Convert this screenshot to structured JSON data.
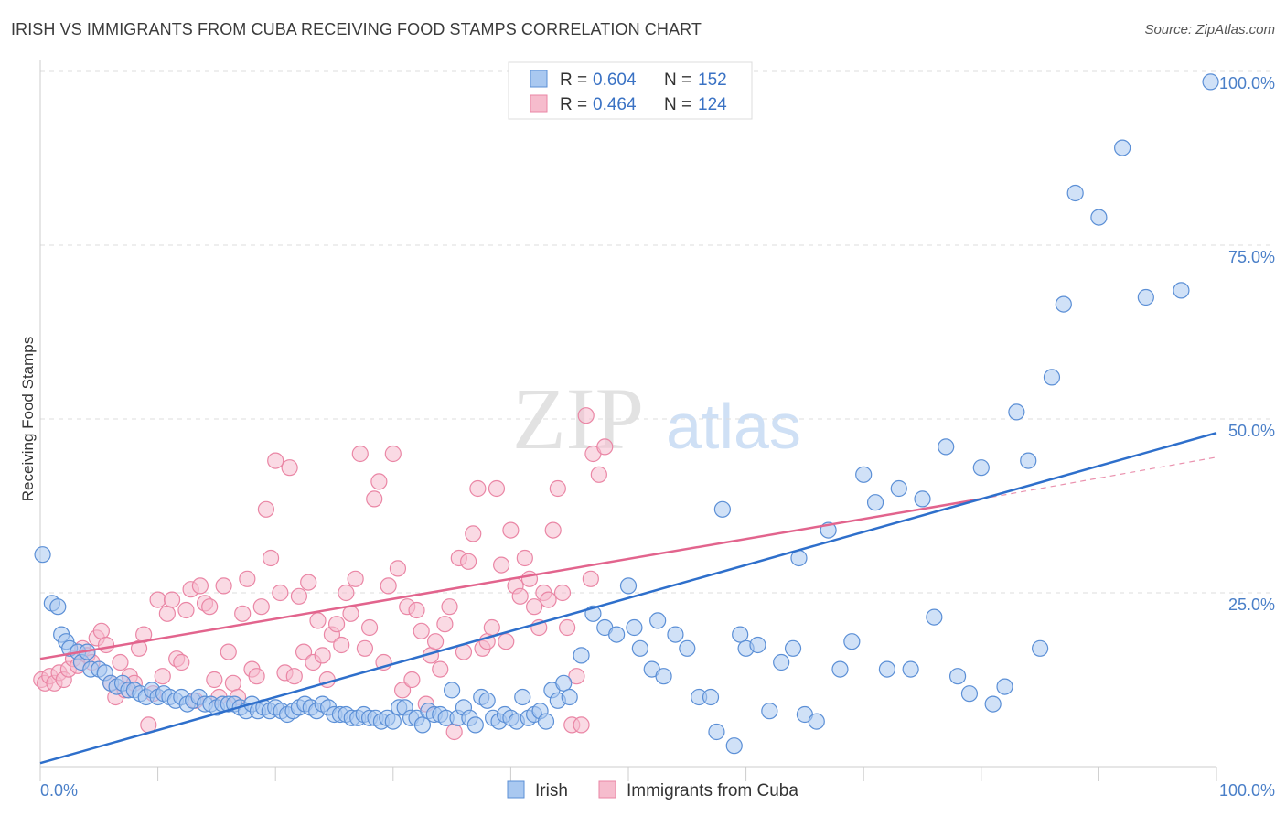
{
  "title": "IRISH VS IMMIGRANTS FROM CUBA RECEIVING FOOD STAMPS CORRELATION CHART",
  "source": "Source: ZipAtlas.com",
  "watermark": {
    "zip": "ZIP",
    "atlas": "atlas"
  },
  "legend": {
    "r_label": "R =",
    "n_label": "N =",
    "irish": {
      "r": "0.604",
      "n": "152"
    },
    "cuba": {
      "r": "0.464",
      "n": "124"
    }
  },
  "colors": {
    "irish_fill": "#a9c8f0",
    "irish_stroke": "#5b8fd6",
    "irish_line": "#2e6fcb",
    "cuba_fill": "#f6bccd",
    "cuba_stroke": "#ea86a5",
    "cuba_line": "#e2648d",
    "tick_text": "#4a7fc8",
    "grid": "#dddddd"
  },
  "chart_data": {
    "type": "scatter",
    "title": "IRISH VS IMMIGRANTS FROM CUBA RECEIVING FOOD STAMPS CORRELATION CHART",
    "xlabel": "",
    "ylabel": "Receiving Food Stamps",
    "xlim": [
      0,
      100
    ],
    "ylim": [
      0,
      100
    ],
    "x_tick_labels": [
      "0.0%",
      "100.0%"
    ],
    "y_tick_labels": [
      "25.0%",
      "50.0%",
      "75.0%",
      "100.0%"
    ],
    "y_ticks": [
      25,
      50,
      75,
      100
    ],
    "grid": true,
    "legend_position": "top-center",
    "series": [
      {
        "name": "Irish",
        "r": 0.604,
        "n": 152,
        "trend": {
          "x": [
            0,
            100
          ],
          "y": [
            0.5,
            48
          ]
        },
        "points": [
          [
            0.2,
            30.5
          ],
          [
            1,
            23.5
          ],
          [
            1.5,
            23
          ],
          [
            1.8,
            19
          ],
          [
            2.2,
            18
          ],
          [
            2.5,
            17
          ],
          [
            3.2,
            16.5
          ],
          [
            3.5,
            15
          ],
          [
            4,
            16.5
          ],
          [
            4.3,
            14
          ],
          [
            5,
            14
          ],
          [
            5.5,
            13.5
          ],
          [
            6,
            12
          ],
          [
            6.5,
            11.5
          ],
          [
            7,
            12
          ],
          [
            7.5,
            11
          ],
          [
            8,
            11
          ],
          [
            8.5,
            10.5
          ],
          [
            9,
            10
          ],
          [
            9.5,
            11
          ],
          [
            10,
            10
          ],
          [
            10.5,
            10.5
          ],
          [
            11,
            10
          ],
          [
            11.5,
            9.5
          ],
          [
            12,
            10
          ],
          [
            12.5,
            9
          ],
          [
            13,
            9.5
          ],
          [
            13.5,
            10
          ],
          [
            14,
            9
          ],
          [
            14.5,
            9
          ],
          [
            15,
            8.5
          ],
          [
            15.5,
            9
          ],
          [
            16,
            9
          ],
          [
            16.5,
            9
          ],
          [
            17,
            8.5
          ],
          [
            17.5,
            8
          ],
          [
            18,
            9
          ],
          [
            18.5,
            8
          ],
          [
            19,
            8.5
          ],
          [
            19.5,
            8
          ],
          [
            20,
            8.5
          ],
          [
            20.5,
            8
          ],
          [
            21,
            7.5
          ],
          [
            21.5,
            8
          ],
          [
            22,
            8.5
          ],
          [
            22.5,
            9
          ],
          [
            23,
            8.5
          ],
          [
            23.5,
            8
          ],
          [
            24,
            9
          ],
          [
            24.5,
            8.5
          ],
          [
            25,
            7.5
          ],
          [
            25.5,
            7.5
          ],
          [
            26,
            7.5
          ],
          [
            26.5,
            7
          ],
          [
            27,
            7
          ],
          [
            27.5,
            7.5
          ],
          [
            28,
            7
          ],
          [
            28.5,
            7
          ],
          [
            29,
            6.5
          ],
          [
            29.5,
            7
          ],
          [
            30,
            6.5
          ],
          [
            30.5,
            8.5
          ],
          [
            31,
            8.5
          ],
          [
            31.5,
            7
          ],
          [
            32,
            7
          ],
          [
            32.5,
            6
          ],
          [
            33,
            8
          ],
          [
            33.5,
            7.5
          ],
          [
            34,
            7.5
          ],
          [
            34.5,
            7
          ],
          [
            35,
            11
          ],
          [
            35.5,
            7
          ],
          [
            36,
            8.5
          ],
          [
            36.5,
            7
          ],
          [
            37,
            6
          ],
          [
            37.5,
            10
          ],
          [
            38,
            9.5
          ],
          [
            38.5,
            7
          ],
          [
            39,
            6.5
          ],
          [
            39.5,
            7.5
          ],
          [
            40,
            7
          ],
          [
            40.5,
            6.5
          ],
          [
            41,
            10
          ],
          [
            41.5,
            7
          ],
          [
            42,
            7.5
          ],
          [
            42.5,
            8
          ],
          [
            43,
            6.5
          ],
          [
            43.5,
            11
          ],
          [
            44,
            9.5
          ],
          [
            44.5,
            12
          ],
          [
            45,
            10
          ],
          [
            46,
            16
          ],
          [
            47,
            22
          ],
          [
            48,
            20
          ],
          [
            49,
            19
          ],
          [
            50,
            26
          ],
          [
            50.5,
            20
          ],
          [
            51,
            17
          ],
          [
            52,
            14
          ],
          [
            52.5,
            21
          ],
          [
            53,
            13
          ],
          [
            54,
            19
          ],
          [
            55,
            17
          ],
          [
            56,
            10
          ],
          [
            57,
            10
          ],
          [
            57.5,
            5
          ],
          [
            58,
            37
          ],
          [
            59,
            3
          ],
          [
            59.5,
            19
          ],
          [
            60,
            17
          ],
          [
            61,
            17.5
          ],
          [
            62,
            8
          ],
          [
            63,
            15
          ],
          [
            64,
            17
          ],
          [
            64.5,
            30
          ],
          [
            65,
            7.5
          ],
          [
            66,
            6.5
          ],
          [
            67,
            34
          ],
          [
            68,
            14
          ],
          [
            69,
            18
          ],
          [
            70,
            42
          ],
          [
            71,
            38
          ],
          [
            72,
            14
          ],
          [
            73,
            40
          ],
          [
            74,
            14
          ],
          [
            75,
            38.5
          ],
          [
            76,
            21.5
          ],
          [
            77,
            46
          ],
          [
            78,
            13
          ],
          [
            79,
            10.5
          ],
          [
            80,
            43
          ],
          [
            81,
            9
          ],
          [
            82,
            11.5
          ],
          [
            83,
            51
          ],
          [
            84,
            44
          ],
          [
            85,
            17
          ],
          [
            86,
            56
          ],
          [
            87,
            66.5
          ],
          [
            88,
            82.5
          ],
          [
            90,
            79
          ],
          [
            92,
            89
          ],
          [
            94,
            67.5
          ],
          [
            97,
            68.5
          ],
          [
            99.5,
            98.5
          ]
        ]
      },
      {
        "name": "Immigrants from Cuba",
        "r": 0.464,
        "n": 124,
        "trend": {
          "x": [
            0,
            80
          ],
          "y": [
            15.5,
            38.5
          ]
        },
        "trend_dashed": {
          "x": [
            80,
            100
          ],
          "y": [
            38.5,
            44.5
          ]
        },
        "points": [
          [
            0.1,
            12.5
          ],
          [
            0.4,
            12
          ],
          [
            0.8,
            13
          ],
          [
            1.2,
            12
          ],
          [
            1.6,
            13.5
          ],
          [
            2,
            12.5
          ],
          [
            2.4,
            14
          ],
          [
            2.8,
            15.5
          ],
          [
            3.2,
            14.5
          ],
          [
            3.6,
            17
          ],
          [
            4,
            16
          ],
          [
            4.4,
            15
          ],
          [
            4.8,
            18.5
          ],
          [
            5.2,
            19.5
          ],
          [
            5.6,
            17.5
          ],
          [
            6,
            12
          ],
          [
            6.4,
            10
          ],
          [
            6.8,
            15
          ],
          [
            7.2,
            11
          ],
          [
            7.6,
            13
          ],
          [
            8,
            12
          ],
          [
            8.4,
            17
          ],
          [
            8.8,
            19
          ],
          [
            9.2,
            6
          ],
          [
            9.6,
            10.5
          ],
          [
            10,
            24
          ],
          [
            10.4,
            13
          ],
          [
            10.8,
            22
          ],
          [
            11.2,
            24
          ],
          [
            11.6,
            15.5
          ],
          [
            12,
            15
          ],
          [
            12.4,
            22.5
          ],
          [
            12.8,
            25.5
          ],
          [
            13.2,
            9.5
          ],
          [
            13.6,
            26
          ],
          [
            14,
            23.5
          ],
          [
            14.4,
            23
          ],
          [
            14.8,
            12.5
          ],
          [
            15.2,
            10
          ],
          [
            15.6,
            26
          ],
          [
            16,
            16.5
          ],
          [
            16.4,
            12
          ],
          [
            16.8,
            10
          ],
          [
            17.2,
            22
          ],
          [
            17.6,
            27
          ],
          [
            18,
            14
          ],
          [
            18.4,
            13
          ],
          [
            18.8,
            23
          ],
          [
            19.2,
            37
          ],
          [
            19.6,
            30
          ],
          [
            20,
            44
          ],
          [
            20.4,
            25
          ],
          [
            20.8,
            13.5
          ],
          [
            21.2,
            43
          ],
          [
            21.6,
            13
          ],
          [
            22,
            24.5
          ],
          [
            22.4,
            16.5
          ],
          [
            22.8,
            26.5
          ],
          [
            23.2,
            15
          ],
          [
            23.6,
            21
          ],
          [
            24,
            16
          ],
          [
            24.4,
            12.5
          ],
          [
            24.8,
            19
          ],
          [
            25.2,
            20.5
          ],
          [
            25.6,
            17.5
          ],
          [
            26,
            25
          ],
          [
            26.4,
            22
          ],
          [
            26.8,
            27
          ],
          [
            27.2,
            45
          ],
          [
            27.6,
            17
          ],
          [
            28,
            20
          ],
          [
            28.4,
            38.5
          ],
          [
            28.8,
            41
          ],
          [
            29.2,
            15
          ],
          [
            29.6,
            26
          ],
          [
            30,
            45
          ],
          [
            30.4,
            28.5
          ],
          [
            30.8,
            11
          ],
          [
            31.2,
            23
          ],
          [
            31.6,
            12.5
          ],
          [
            32,
            22.5
          ],
          [
            32.4,
            19.5
          ],
          [
            32.8,
            9
          ],
          [
            33.2,
            16
          ],
          [
            33.6,
            18
          ],
          [
            34,
            14
          ],
          [
            34.4,
            20.5
          ],
          [
            34.8,
            23
          ],
          [
            35.2,
            5
          ],
          [
            35.6,
            30
          ],
          [
            36,
            16.5
          ],
          [
            36.4,
            29.5
          ],
          [
            36.8,
            33.5
          ],
          [
            37.2,
            40
          ],
          [
            37.6,
            17
          ],
          [
            38,
            18
          ],
          [
            38.4,
            20
          ],
          [
            38.8,
            40
          ],
          [
            39.2,
            29
          ],
          [
            39.6,
            18
          ],
          [
            40,
            34
          ],
          [
            40.4,
            26
          ],
          [
            40.8,
            24.5
          ],
          [
            41.2,
            30
          ],
          [
            41.6,
            27
          ],
          [
            42,
            23
          ],
          [
            42.4,
            20
          ],
          [
            42.8,
            25
          ],
          [
            43.2,
            24
          ],
          [
            43.6,
            34
          ],
          [
            44,
            40
          ],
          [
            44.4,
            25
          ],
          [
            44.8,
            20
          ],
          [
            45.2,
            6
          ],
          [
            45.6,
            13
          ],
          [
            46,
            6
          ],
          [
            46.4,
            50.5
          ],
          [
            46.8,
            27
          ],
          [
            47,
            45
          ],
          [
            47.5,
            42
          ],
          [
            48,
            46
          ]
        ]
      }
    ]
  }
}
